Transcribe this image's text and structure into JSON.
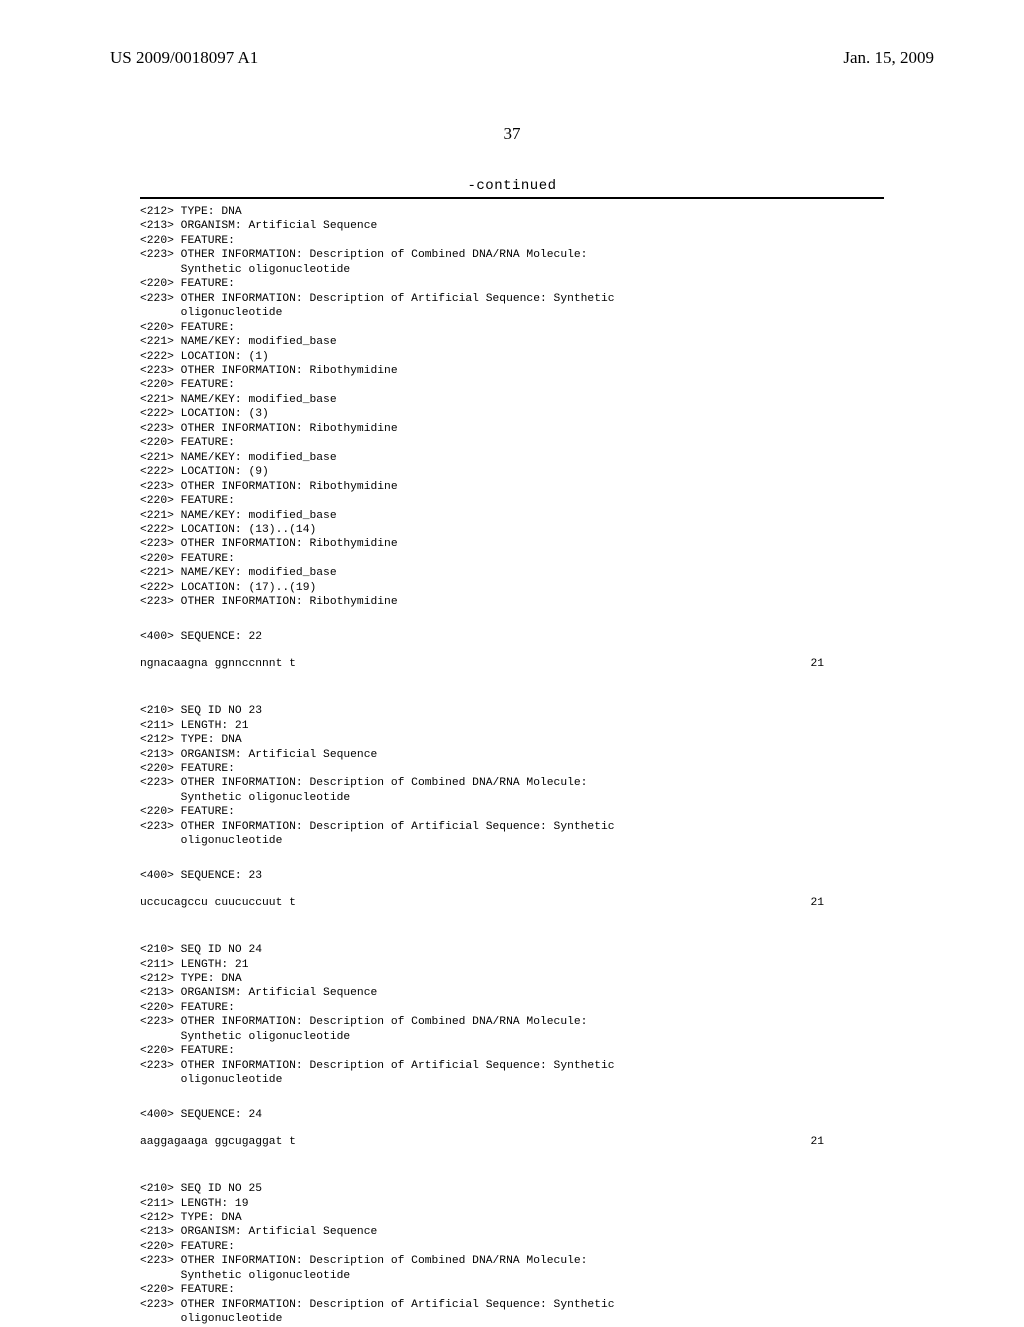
{
  "header": {
    "pub_number": "US 2009/0018097 A1",
    "pub_date": "Jan. 15, 2009"
  },
  "page_number": "37",
  "continued_label": "-continued",
  "block1": {
    "lines": [
      "<212> TYPE: DNA",
      "<213> ORGANISM: Artificial Sequence",
      "<220> FEATURE:",
      "<223> OTHER INFORMATION: Description of Combined DNA/RNA Molecule:",
      "      Synthetic oligonucleotide",
      "<220> FEATURE:",
      "<223> OTHER INFORMATION: Description of Artificial Sequence: Synthetic",
      "      oligonucleotide",
      "<220> FEATURE:",
      "<221> NAME/KEY: modified_base",
      "<222> LOCATION: (1)",
      "<223> OTHER INFORMATION: Ribothymidine",
      "<220> FEATURE:",
      "<221> NAME/KEY: modified_base",
      "<222> LOCATION: (3)",
      "<223> OTHER INFORMATION: Ribothymidine",
      "<220> FEATURE:",
      "<221> NAME/KEY: modified_base",
      "<222> LOCATION: (9)",
      "<223> OTHER INFORMATION: Ribothymidine",
      "<220> FEATURE:",
      "<221> NAME/KEY: modified_base",
      "<222> LOCATION: (13)..(14)",
      "<223> OTHER INFORMATION: Ribothymidine",
      "<220> FEATURE:",
      "<221> NAME/KEY: modified_base",
      "<222> LOCATION: (17)..(19)",
      "<223> OTHER INFORMATION: Ribothymidine"
    ],
    "seq_label": "<400> SEQUENCE: 22",
    "sequence": "ngnacaagna ggnnccnnnt t",
    "seq_len": "21"
  },
  "block2": {
    "lines": [
      "<210> SEQ ID NO 23",
      "<211> LENGTH: 21",
      "<212> TYPE: DNA",
      "<213> ORGANISM: Artificial Sequence",
      "<220> FEATURE:",
      "<223> OTHER INFORMATION: Description of Combined DNA/RNA Molecule:",
      "      Synthetic oligonucleotide",
      "<220> FEATURE:",
      "<223> OTHER INFORMATION: Description of Artificial Sequence: Synthetic",
      "      oligonucleotide"
    ],
    "seq_label": "<400> SEQUENCE: 23",
    "sequence": "uccucagccu cuucuccuut t",
    "seq_len": "21"
  },
  "block3": {
    "lines": [
      "<210> SEQ ID NO 24",
      "<211> LENGTH: 21",
      "<212> TYPE: DNA",
      "<213> ORGANISM: Artificial Sequence",
      "<220> FEATURE:",
      "<223> OTHER INFORMATION: Description of Combined DNA/RNA Molecule:",
      "      Synthetic oligonucleotide",
      "<220> FEATURE:",
      "<223> OTHER INFORMATION: Description of Artificial Sequence: Synthetic",
      "      oligonucleotide"
    ],
    "seq_label": "<400> SEQUENCE: 24",
    "sequence": "aaggagaaga ggcugaggat t",
    "seq_len": "21"
  },
  "block4": {
    "lines": [
      "<210> SEQ ID NO 25",
      "<211> LENGTH: 19",
      "<212> TYPE: DNA",
      "<213> ORGANISM: Artificial Sequence",
      "<220> FEATURE:",
      "<223> OTHER INFORMATION: Description of Combined DNA/RNA Molecule:",
      "      Synthetic oligonucleotide",
      "<220> FEATURE:",
      "<223> OTHER INFORMATION: Description of Artificial Sequence: Synthetic",
      "      oligonucleotide"
    ]
  }
}
